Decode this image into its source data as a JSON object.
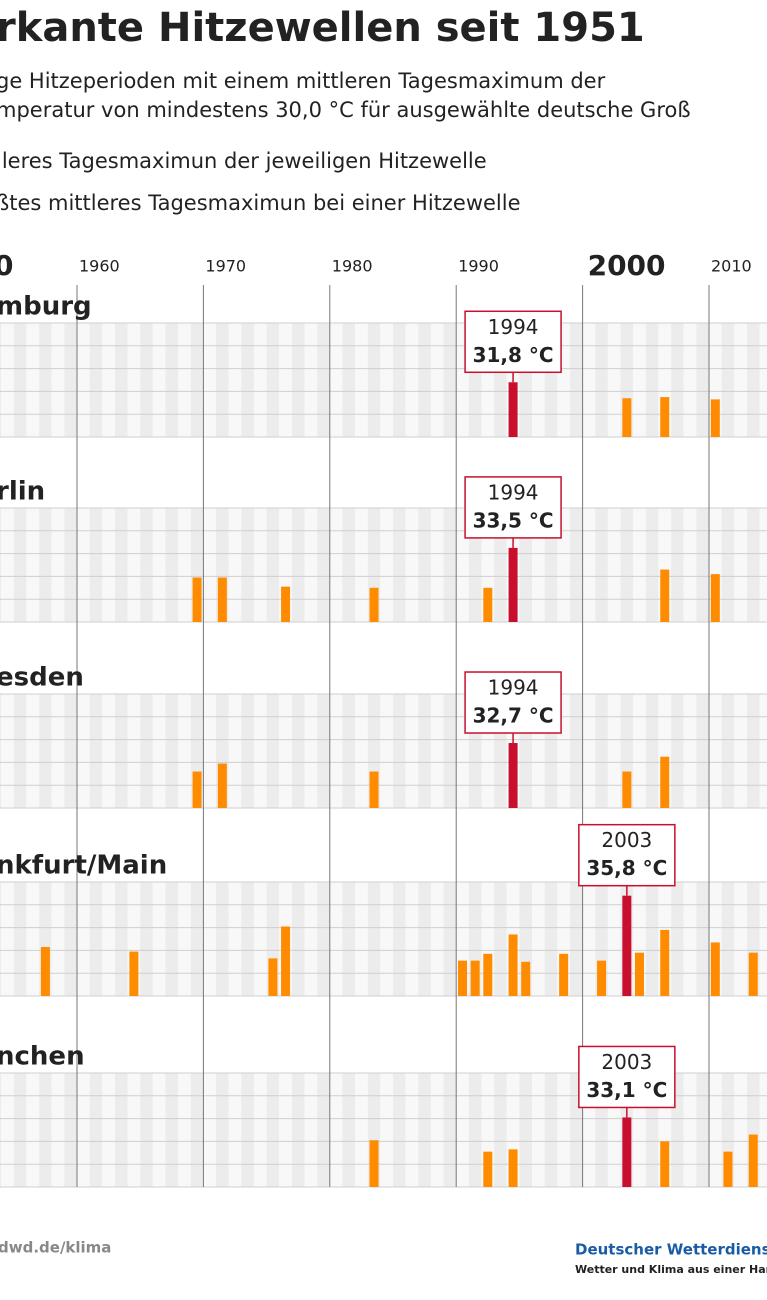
{
  "chart_data": {
    "type": "bar",
    "title": "rkante Hitzewellen seit 1951",
    "subtitle": [
      "ge Hitzeperioden mit einem mittleren Tagesmaximum der",
      "mperatur von mindestens 30,0 °C für ausgewählte deutsche Groß"
    ],
    "legend": [
      "lleres Tagesmaximun der jeweiligen Hitzewelle",
      "ßtes mittleres Tagesmaximun bei einer Hitzewelle"
    ],
    "color": "#ff8c00",
    "highlight_color": "#c8102e",
    "xlim": [
      1950,
      2020
    ],
    "xticks": [
      {
        "value": 1950,
        "label": "0"
      },
      1960,
      1970,
      1980,
      1990,
      2000,
      2010
    ],
    "bold_xticks": [
      1950,
      2000
    ],
    "ylim": [
      27,
      37
    ],
    "yticks": [
      27,
      29,
      31,
      33,
      35,
      37
    ],
    "grid": true,
    "panels": [
      {
        "title": "mburg",
        "x": [
          1994,
          2003,
          2006,
          2010
        ],
        "values": [
          31.8,
          30.4,
          30.5,
          30.3
        ],
        "value_labels": [
          "31,8 °C",
          null,
          null,
          null
        ],
        "highlight": 0
      },
      {
        "title": "rlin",
        "x": [
          1969,
          1971,
          1976,
          1983,
          1992,
          1994,
          2006,
          2010
        ],
        "values": [
          30.9,
          30.9,
          30.1,
          30.0,
          30.0,
          33.5,
          31.6,
          31.2
        ],
        "value_labels": [
          null,
          null,
          null,
          null,
          null,
          "33,5 °C",
          null,
          null
        ],
        "highlight": 5
      },
      {
        "title": "esden",
        "x": [
          1969,
          1971,
          1983,
          1994,
          2003,
          2006
        ],
        "values": [
          30.2,
          30.9,
          30.2,
          32.7,
          30.2,
          31.5
        ],
        "value_labels": [
          null,
          null,
          null,
          "32,7 °C",
          null,
          null
        ],
        "highlight": 3
      },
      {
        "title": "nkfurt/Main",
        "x": [
          1957,
          1964,
          1975,
          1976,
          1990,
          1991,
          1992,
          1994,
          1995,
          1998,
          2001,
          2003,
          2004,
          2006,
          2010,
          2013
        ],
        "values": [
          31.3,
          30.9,
          30.3,
          33.1,
          30.1,
          30.1,
          30.7,
          32.4,
          30.0,
          30.7,
          30.1,
          35.8,
          30.8,
          32.8,
          31.7,
          30.8
        ],
        "value_labels": [
          null,
          null,
          null,
          null,
          null,
          null,
          null,
          null,
          null,
          null,
          null,
          "35,8 °C",
          null,
          null,
          null,
          null
        ],
        "highlight": 11
      },
      {
        "title": "nchen",
        "x": [
          1983,
          1992,
          1994,
          2003,
          2006,
          2011,
          2013
        ],
        "values": [
          31.1,
          30.1,
          30.3,
          33.1,
          31.0,
          30.1,
          31.6
        ],
        "value_labels": [
          null,
          null,
          null,
          "33,1 °C",
          null,
          null,
          null
        ],
        "highlight": 3
      }
    ],
    "source": "dwd.de/klima",
    "brand": "Deutscher Wetterdiens",
    "tagline": "Wetter und Klima aus einer Har"
  }
}
